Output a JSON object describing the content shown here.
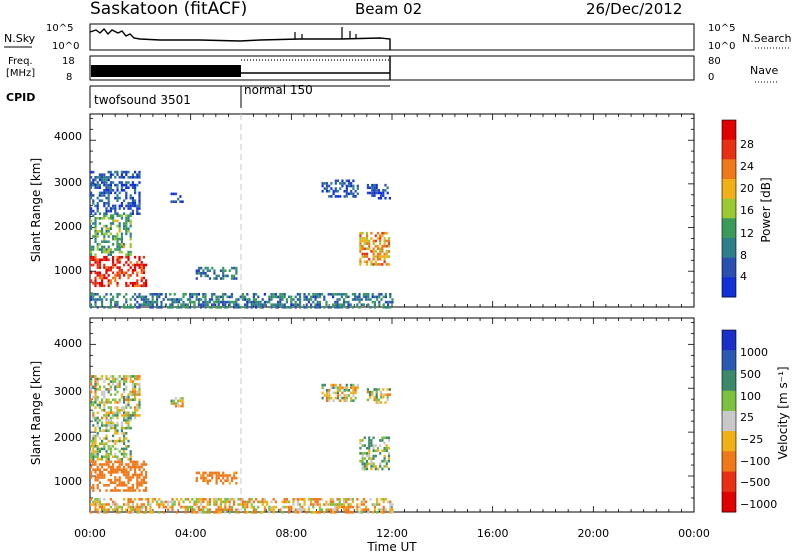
{
  "header": {
    "station": "Saskatoon (fitACF)",
    "beam": "Beam 02",
    "date": "26/Dec/2012"
  },
  "top_panels": {
    "nsky": {
      "label": "N.Sky",
      "ticks": [
        "10^5",
        "10^0"
      ],
      "right_label": "N.Search",
      "right_ticks": [
        "10^5",
        "10^0"
      ]
    },
    "freq": {
      "label_line1": "Freq.",
      "label_line2": "[MHz]",
      "ticks": [
        "18",
        "8"
      ],
      "right_label": "Nave",
      "right_ticks": [
        "80",
        "0"
      ]
    },
    "cpid": {
      "label": "CPID",
      "modes": [
        "twofsound 3501",
        "normal 150"
      ]
    }
  },
  "panels": [
    {
      "name": "power",
      "ylabel": "Slant Range [km]",
      "yticks": [
        "1000",
        "2000",
        "3000",
        "4000"
      ],
      "colorbar_label": "Power [dB]",
      "colorbar_ticks": [
        "4",
        "8",
        "12",
        "16",
        "20",
        "24",
        "28"
      ],
      "colors": [
        "#1030d8",
        "#2a4fb0",
        "#2f7f8a",
        "#3a9a5a",
        "#9ac832",
        "#f0b018",
        "#f07818",
        "#e83014",
        "#e00000"
      ]
    },
    {
      "name": "velocity",
      "ylabel": "Slant Range [km]",
      "yticks": [
        "1000",
        "2000",
        "3000",
        "4000"
      ],
      "colorbar_label": "Velocity [m s⁻¹]",
      "colorbar_ticks": [
        "1000",
        "500",
        "100",
        "25",
        "−25",
        "−100",
        "−500",
        "−1000"
      ],
      "colors": [
        "#1a2ec8",
        "#2a5ab0",
        "#3a8a6a",
        "#7cc040",
        "#c8c8c8",
        "#f0b018",
        "#f07818",
        "#e83014",
        "#e00000"
      ]
    }
  ],
  "xaxis": {
    "label": "Time UT",
    "ticks": [
      "00:00",
      "04:00",
      "08:00",
      "12:00",
      "16:00",
      "20:00",
      "00:00"
    ]
  },
  "chart_data": {
    "type": "heatmap",
    "title": "Saskatoon (fitACF)",
    "xlabel": "Time UT",
    "ylabel": "Slant Range [km]",
    "x_range_hours": [
      0,
      24
    ],
    "y_range_km": [
      180,
      4600
    ],
    "data_end_hour": 12,
    "mode_change_hour": 6,
    "power_scale_db": [
      4,
      8,
      12,
      16,
      20,
      24,
      28
    ],
    "velocity_scale": [
      1000,
      500,
      100,
      25,
      -25,
      -100,
      -500,
      -1000
    ],
    "scatter_regions": [
      {
        "t0": 0.0,
        "t1": 2.2,
        "r0": 650,
        "r1": 1350,
        "power": 28,
        "velocity": -300
      },
      {
        "t0": 0.0,
        "t1": 1.6,
        "r0": 1400,
        "r1": 2300,
        "power": 14,
        "velocity": 50
      },
      {
        "t0": 0.0,
        "t1": 2.0,
        "r0": 2300,
        "r1": 3300,
        "power": 7,
        "velocity": 0
      },
      {
        "t0": 3.2,
        "t1": 3.7,
        "r0": 2600,
        "r1": 2800,
        "power": 6,
        "velocity": 0
      },
      {
        "t0": 4.2,
        "t1": 5.8,
        "r0": 850,
        "r1": 1100,
        "power": 10,
        "velocity": -200
      },
      {
        "t0": 9.2,
        "t1": 10.6,
        "r0": 2700,
        "r1": 3100,
        "power": 6,
        "velocity": 10
      },
      {
        "t0": 11.0,
        "t1": 11.9,
        "r0": 2700,
        "r1": 3000,
        "power": 5,
        "velocity": 5
      },
      {
        "t0": 10.7,
        "t1": 11.9,
        "r0": 1150,
        "r1": 1900,
        "power": 22,
        "velocity": 80
      },
      {
        "t0": 0.0,
        "t1": 12.0,
        "r0": 180,
        "r1": 500,
        "power": 10,
        "velocity": -60
      }
    ]
  }
}
